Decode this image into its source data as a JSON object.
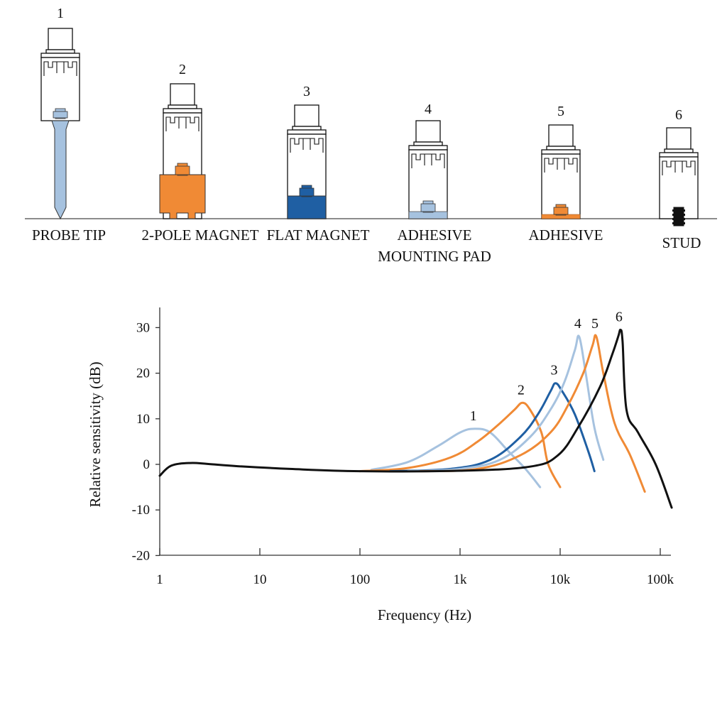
{
  "mounts": [
    {
      "number": "1",
      "label_lines": [
        "PROBE TIP"
      ],
      "mount_type": "probe",
      "color": "#a6c2df"
    },
    {
      "number": "2",
      "label_lines": [
        "2-POLE MAGNET"
      ],
      "mount_type": "two_pole_magnet",
      "color": "#f08a35"
    },
    {
      "number": "3",
      "label_lines": [
        "FLAT MAGNET"
      ],
      "mount_type": "flat_magnet",
      "color": "#1f5fa3"
    },
    {
      "number": "4",
      "label_lines": [
        "ADHESIVE",
        "MOUNTING PAD"
      ],
      "mount_type": "adhesive_pad",
      "color": "#a6c2df"
    },
    {
      "number": "5",
      "label_lines": [
        "ADHESIVE"
      ],
      "mount_type": "adhesive",
      "color": "#f08a35"
    },
    {
      "number": "6",
      "label_lines": [
        "STUD"
      ],
      "mount_type": "stud",
      "color": "#111111"
    }
  ],
  "chart_data": {
    "type": "line",
    "title": "",
    "xlabel": "Frequency (Hz)",
    "ylabel": "Relative sensitivity (dB)",
    "x_scale": "log",
    "xlim": [
      1,
      150000
    ],
    "ylim": [
      -20,
      35
    ],
    "x_ticks": [
      1,
      10,
      100,
      1000,
      10000,
      100000
    ],
    "x_tick_labels": [
      "1",
      "10",
      "100",
      "1k",
      "10k",
      "100k"
    ],
    "y_ticks": [
      30,
      20,
      10,
      0,
      -10,
      -20
    ],
    "y_tick_labels": [
      "30",
      "20",
      "10",
      "0",
      "-10",
      "-20"
    ],
    "grid": false,
    "series": [
      {
        "name": "1",
        "color": "#a6c2df",
        "x": [
          130,
          300,
          600,
          1000,
          1400,
          2000,
          3000,
          4500,
          6300
        ],
        "y": [
          -1.2,
          0.5,
          4,
          7,
          7.8,
          7,
          3,
          -1,
          -5
        ]
      },
      {
        "name": "2",
        "color": "#f08a35",
        "x": [
          100,
          300,
          800,
          1500,
          2500,
          3500,
          4200,
          5000,
          6500,
          7600,
          10000
        ],
        "y": [
          -1.5,
          -0.8,
          1.5,
          5,
          9,
          12,
          13.5,
          12,
          7,
          0,
          -5
        ]
      },
      {
        "name": "3",
        "color": "#1f5fa3",
        "x": [
          200,
          800,
          2000,
          4000,
          6000,
          8000,
          9000,
          10500,
          14000,
          19000,
          22000
        ],
        "y": [
          -1.5,
          -1,
          1,
          6,
          11,
          16,
          17.8,
          16,
          11,
          3,
          -1.5
        ]
      },
      {
        "name": "4",
        "color": "#a6c2df",
        "x": [
          300,
          1000,
          2500,
          5000,
          8000,
          11000,
          14000,
          15500,
          18000,
          22000,
          27000
        ],
        "y": [
          -1.5,
          -1,
          1,
          6,
          12,
          18,
          25,
          28,
          20,
          8,
          1
        ]
      },
      {
        "name": "5",
        "color": "#f08a35",
        "x": [
          400,
          1500,
          4000,
          8000,
          12000,
          17000,
          21000,
          23000,
          27000,
          35000,
          50000,
          70000
        ],
        "y": [
          -1.5,
          -1,
          2,
          7,
          13,
          20,
          26,
          28,
          20,
          9,
          2,
          -6
        ]
      },
      {
        "name": "6",
        "color": "#111111",
        "x": [
          1,
          1.3,
          2,
          3,
          6,
          20,
          100,
          1000,
          5000,
          9500,
          15000,
          25000,
          33000,
          38000,
          40000,
          42000,
          46000,
          60000,
          90000,
          130000
        ],
        "y": [
          -2.5,
          -0.3,
          0.3,
          0.1,
          -0.4,
          -1,
          -1.5,
          -1.4,
          -0.5,
          2,
          8,
          17,
          24,
          28,
          29.5,
          27,
          12,
          7,
          0,
          -9.5
        ]
      }
    ]
  }
}
